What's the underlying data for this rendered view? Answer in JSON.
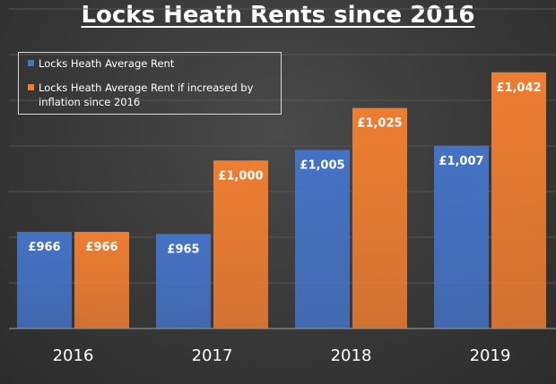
{
  "chart_data": {
    "type": "bar",
    "title": "Locks Heath Rents since 2016",
    "categories": [
      "2016",
      "2017",
      "2018",
      "2019"
    ],
    "series": [
      {
        "name": "Locks Heath Average Rent",
        "color": "#4472c4",
        "values": [
          966,
          965,
          1005,
          1007
        ],
        "labels": [
          "£966",
          "£965",
          "£1,005",
          "£1,007"
        ]
      },
      {
        "name": "Locks Heath Average Rent if increased by inflation since 2016",
        "color": "#ed7d31",
        "values": [
          966,
          1000,
          1025,
          1042
        ],
        "labels": [
          "£966",
          "£1,000",
          "£1,025",
          "£1,042"
        ]
      }
    ],
    "ylim": [
      920,
      1050
    ],
    "grid": true,
    "legend": "top-left",
    "xlabel": "",
    "ylabel": ""
  }
}
